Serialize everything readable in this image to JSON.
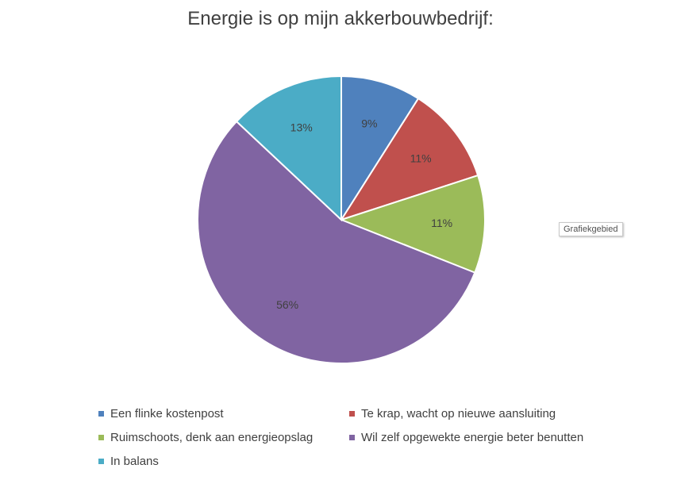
{
  "chart_data": {
    "type": "pie",
    "title": "Energie is op mijn akkerbouwbedrijf:",
    "categories": [
      "Een flinke kostenpost",
      "Te krap, wacht op nieuwe aansluiting",
      "Ruimschoots, denk aan energieopslag",
      "Wil zelf opgewekte energie beter benutten",
      "In balans"
    ],
    "values": [
      9,
      11,
      11,
      56,
      13
    ],
    "data_labels": [
      "9%",
      "11%",
      "11%",
      "56%",
      "13%"
    ],
    "colors": [
      "#4f81bd",
      "#c0504d",
      "#9bbb59",
      "#8064a2",
      "#4bacc6"
    ],
    "legend_position": "bottom"
  },
  "tooltip": "Grafiekgebied"
}
